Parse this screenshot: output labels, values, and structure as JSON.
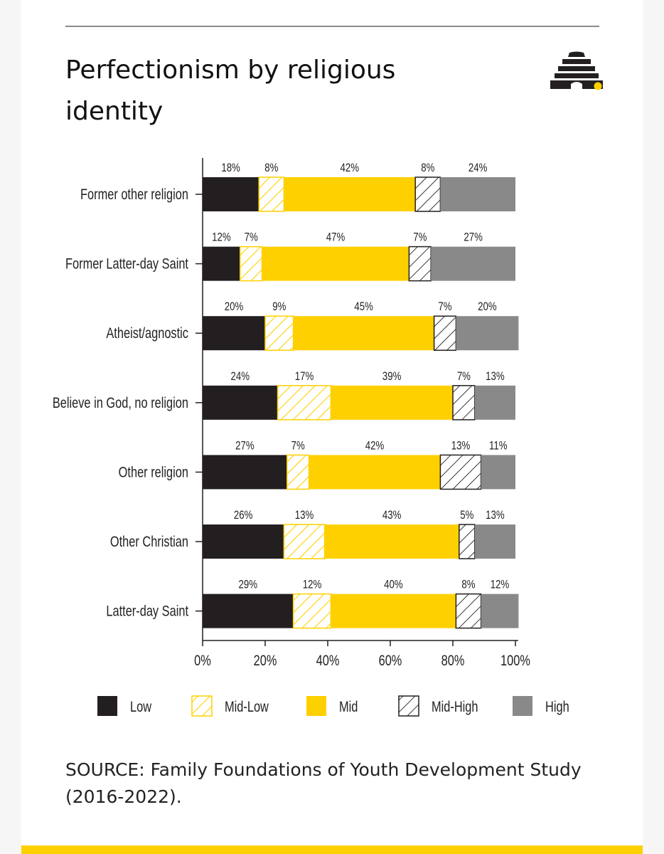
{
  "page": {
    "title": "Perfectionism by religious identity",
    "source": "SOURCE: Family Foundations of Youth Development Study (2016-2022).",
    "logo_icon": "beehive-logo-icon"
  },
  "colors": {
    "low": "#231f20",
    "mid_low_stripe": "#ffd000",
    "mid": "#ffd000",
    "mid_high_stripe": "#231f20",
    "high": "#898989",
    "accent": "#ffd000"
  },
  "chart_data": {
    "type": "bar",
    "orientation": "horizontal",
    "stacked": true,
    "categories": [
      "Former other religion",
      "Former Latter-day Saint",
      "Atheist/agnostic",
      "Believe in God, no religion",
      "Other religion",
      "Other Christian",
      "Latter-day Saint"
    ],
    "series": [
      {
        "name": "Low",
        "values": [
          18,
          12,
          20,
          24,
          27,
          26,
          29
        ],
        "labels": [
          "18%",
          "12%",
          "20%",
          "24%",
          "27%",
          "26%",
          "29%"
        ]
      },
      {
        "name": "Mid-Low",
        "values": [
          8,
          7,
          9,
          17,
          7,
          13,
          12
        ],
        "labels": [
          "8%",
          "7%",
          "9%",
          "17%",
          "7%",
          "13%",
          "12%"
        ]
      },
      {
        "name": "Mid",
        "values": [
          42,
          47,
          45,
          39,
          42,
          43,
          40
        ],
        "labels": [
          "42%",
          "47%",
          "45%",
          "39%",
          "42%",
          "43%",
          "40%"
        ]
      },
      {
        "name": "Mid-High",
        "values": [
          8,
          7,
          7,
          7,
          13,
          5,
          8
        ],
        "labels": [
          "8%",
          "7%",
          "7%",
          "7%",
          "13%",
          "5%",
          "8%"
        ]
      },
      {
        "name": "High",
        "values": [
          24,
          27,
          20,
          13,
          11,
          13,
          12
        ],
        "labels": [
          "24%",
          "27%",
          "20%",
          "13%",
          "11%",
          "13%",
          "12%"
        ]
      }
    ],
    "xlim": [
      0,
      100
    ],
    "xticks": [
      "0%",
      "20%",
      "40%",
      "60%",
      "80%",
      "100%"
    ],
    "legend": [
      "Low",
      "Mid-Low",
      "Mid",
      "Mid-High",
      "High"
    ],
    "legend_position": "bottom",
    "grid": false
  }
}
